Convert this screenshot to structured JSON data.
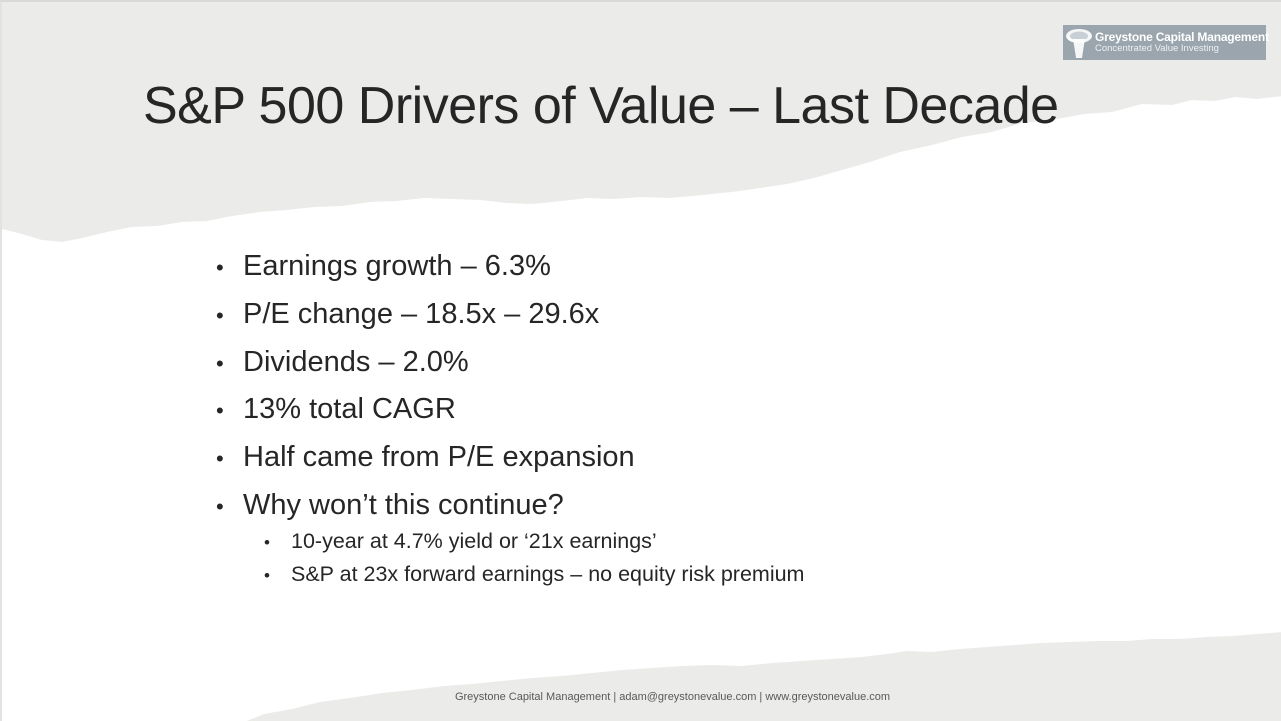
{
  "logo": {
    "name": "Greystone Capital Management",
    "tagline": "Concentrated Value Investing",
    "icon": "greystone-pillar-icon",
    "color": "#9aa5ad"
  },
  "title": "S&P 500 Drivers of Value – Last Decade",
  "bullets": [
    "Earnings growth – 6.3%",
    "P/E change – 18.5x – 29.6x",
    "Dividends – 2.0%",
    "13% total CAGR",
    "Half came from P/E expansion",
    "Why won’t this continue?"
  ],
  "sub_bullets": [
    "10-year at 4.7% yield or ‘21x earnings’",
    "S&P at 23x forward earnings – no equity risk premium"
  ],
  "footer": "Greystone Capital Management | adam@greystonevalue.com | www.greystonevalue.com",
  "colors": {
    "background": "#ffffff",
    "torn_paper": "#ebebea",
    "text": "#262626"
  }
}
